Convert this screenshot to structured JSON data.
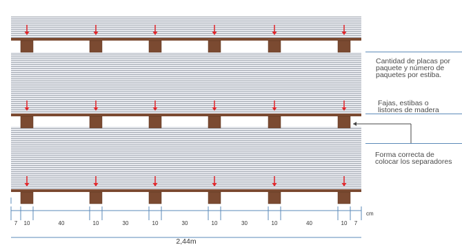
{
  "annotations": {
    "quantity": "Cantidad de placas por\npaquete y número de\npaquetes por estiba.",
    "straps": "Fajas, estibas o\nlistones de madera",
    "correct_way": "Forma correcta de\ncolocar los separadores"
  },
  "dimensions": {
    "segments": [
      "7",
      "10",
      "40",
      "10",
      "30",
      "10",
      "30",
      "10",
      "30",
      "10",
      "40",
      "10",
      "7"
    ],
    "unit": "cm",
    "total": "2,44m"
  },
  "colors": {
    "separator": "#7b4a31",
    "separator_edge": "#5a3320",
    "arrow": "#e0252a",
    "dimension_line": "#5a89b8",
    "stack_line": "#9aa1ab",
    "stack_fill": "#e7e9ee"
  },
  "icons": {
    "arrow": "red-down-arrow-icon"
  }
}
